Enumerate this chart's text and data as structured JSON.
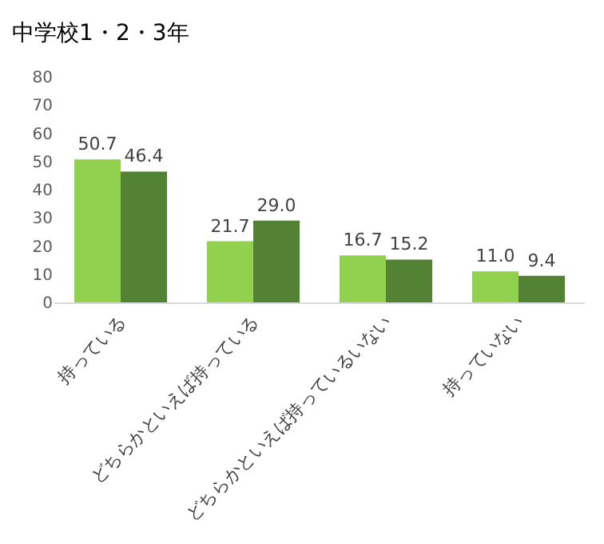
{
  "chart_data": {
    "type": "bar",
    "title": "中学校1・2・3年",
    "categories": [
      "持っている",
      "どちらかといえば持っている",
      "どちらかといえば持っているいない",
      "持っていない"
    ],
    "series": [
      {
        "color": "#92d050",
        "values": [
          50.7,
          21.7,
          16.7,
          11.0
        ],
        "value_labels": [
          "50.7",
          "21.7",
          "16.7",
          "11.0"
        ]
      },
      {
        "color": "#548235",
        "values": [
          46.4,
          29.0,
          15.2,
          9.4
        ],
        "value_labels": [
          "46.4",
          "29.0",
          "15.2",
          "9.4"
        ]
      }
    ],
    "ylim": [
      0,
      80
    ],
    "yticks": [
      0,
      10,
      20,
      30,
      40,
      50,
      60,
      70,
      80
    ],
    "grid": false
  }
}
